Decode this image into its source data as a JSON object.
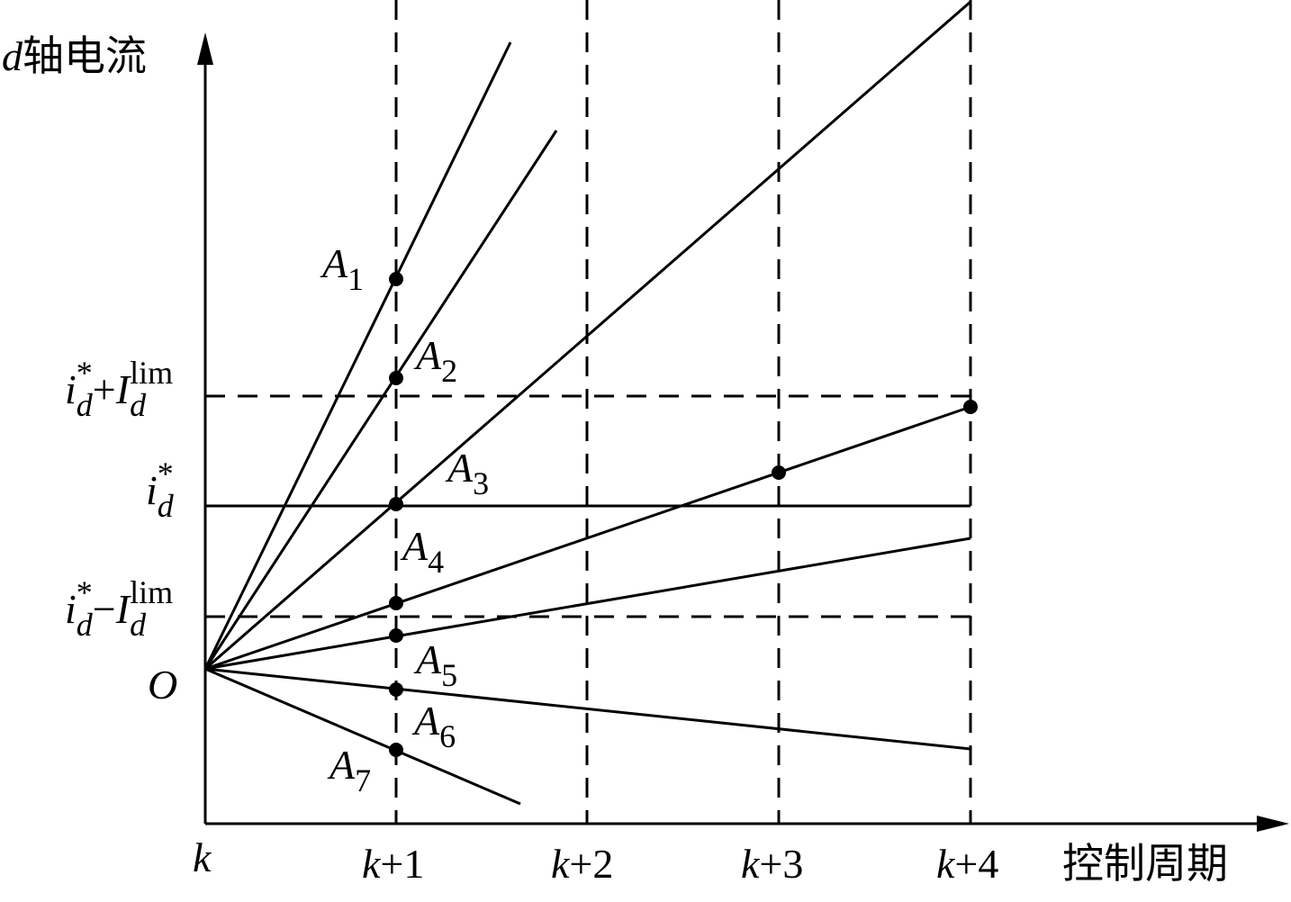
{
  "labels": [
    {
      "segments": [
        {
          "t": "d",
          "italic": true
        },
        {
          "t": "轴电流"
        }
      ]
    },
    {
      "segments": [
        {
          "t": "控制周期"
        }
      ]
    },
    {
      "segments": [
        {
          "t": "k",
          "italic": true
        }
      ]
    },
    {
      "segments": [
        {
          "t": "k",
          "italic": true
        },
        {
          "t": "+1"
        }
      ]
    },
    {
      "segments": [
        {
          "t": "k",
          "italic": true
        },
        {
          "t": "+2"
        }
      ]
    },
    {
      "segments": [
        {
          "t": "k",
          "italic": true
        },
        {
          "t": "+3"
        }
      ]
    },
    {
      "segments": [
        {
          "t": "k",
          "italic": true
        },
        {
          "t": "+4"
        }
      ]
    },
    {
      "segments": [
        {
          "t": "i",
          "italic": true
        },
        {
          "t": "d",
          "italic": true,
          "pos": "sub"
        },
        {
          "t": "*",
          "pos": "sup",
          "stack": true
        },
        {
          "t": "+"
        },
        {
          "t": "I",
          "italic": true
        },
        {
          "t": "d",
          "italic": true,
          "pos": "sub"
        },
        {
          "t": "lim",
          "pos": "sup",
          "stack": true
        }
      ]
    },
    {
      "segments": [
        {
          "t": "i",
          "italic": true
        },
        {
          "t": "d",
          "italic": true,
          "pos": "sub"
        },
        {
          "t": "*",
          "pos": "sup",
          "stack": true
        }
      ]
    },
    {
      "segments": [
        {
          "t": "i",
          "italic": true
        },
        {
          "t": "d",
          "italic": true,
          "pos": "sub"
        },
        {
          "t": "*",
          "pos": "sup",
          "stack": true
        },
        {
          "t": "−"
        },
        {
          "t": "I",
          "italic": true
        },
        {
          "t": "d",
          "italic": true,
          "pos": "sub"
        },
        {
          "t": "lim",
          "pos": "sup",
          "stack": true
        }
      ]
    },
    {
      "segments": [
        {
          "t": "O",
          "italic": true
        }
      ]
    },
    {
      "segments": [
        {
          "t": "A",
          "italic": true
        },
        {
          "t": "1",
          "pos": "sub"
        }
      ]
    },
    {
      "segments": [
        {
          "t": "A",
          "italic": true
        },
        {
          "t": "2",
          "pos": "sub"
        }
      ]
    },
    {
      "segments": [
        {
          "t": "A",
          "italic": true
        },
        {
          "t": "3",
          "pos": "sub"
        }
      ]
    },
    {
      "segments": [
        {
          "t": "A",
          "italic": true
        },
        {
          "t": "4",
          "pos": "sub"
        }
      ]
    },
    {
      "segments": [
        {
          "t": "A",
          "italic": true
        },
        {
          "t": "5",
          "pos": "sub"
        }
      ]
    },
    {
      "segments": [
        {
          "t": "A",
          "italic": true
        },
        {
          "t": "6",
          "pos": "sub"
        }
      ]
    },
    {
      "segments": [
        {
          "t": "A",
          "italic": true
        },
        {
          "t": "7",
          "pos": "sub"
        }
      ]
    }
  ]
}
